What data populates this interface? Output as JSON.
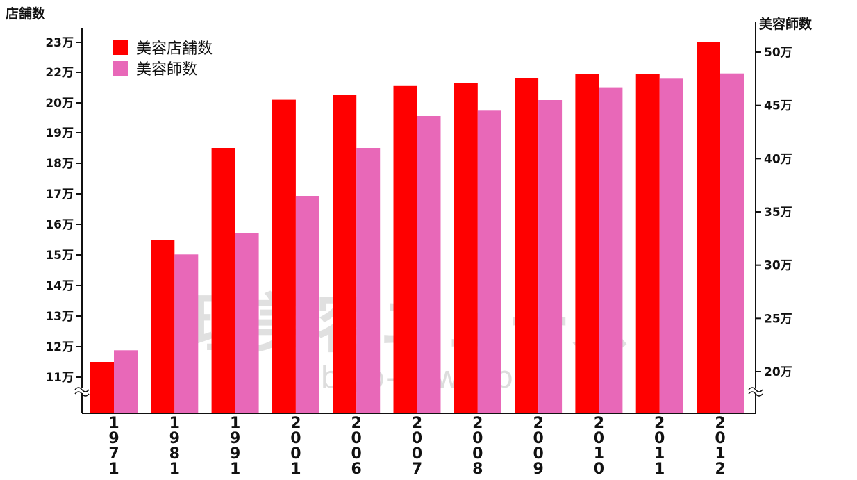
{
  "chart_data": {
    "type": "bar",
    "categories": [
      "1971",
      "1981",
      "1991",
      "2001",
      "2006",
      "2007",
      "2008",
      "2009",
      "2010",
      "2011",
      "2012"
    ],
    "series": [
      {
        "name": "美容店舗数",
        "axis": "left",
        "color": "#ff0000",
        "values": [
          115000,
          155000,
          185000,
          202000,
          205000,
          211000,
          213000,
          216000,
          219000,
          219000,
          230000
        ]
      },
      {
        "name": "美容師数",
        "axis": "right",
        "color": "#e868b8",
        "values": [
          220000,
          310000,
          330000,
          365000,
          410000,
          440000,
          445000,
          455000,
          467000,
          475000,
          480000
        ]
      }
    ],
    "y_left": {
      "label": "店舗数",
      "ticks": [
        {
          "value": 110000,
          "label": "11万"
        },
        {
          "value": 120000,
          "label": "12万"
        },
        {
          "value": 130000,
          "label": "13万"
        },
        {
          "value": 140000,
          "label": "14万"
        },
        {
          "value": 150000,
          "label": "15万"
        },
        {
          "value": 160000,
          "label": "16万"
        },
        {
          "value": 170000,
          "label": "17万"
        },
        {
          "value": 180000,
          "label": "18万"
        },
        {
          "value": 190000,
          "label": "19万"
        },
        {
          "value": 200000,
          "label": "20万"
        },
        {
          "value": 220000,
          "label": "22万"
        },
        {
          "value": 230000,
          "label": "23万"
        }
      ],
      "break_below": true
    },
    "y_right": {
      "label": "美容師数",
      "ticks": [
        {
          "value": 200000,
          "label": "20万"
        },
        {
          "value": 250000,
          "label": "25万"
        },
        {
          "value": 300000,
          "label": "30万"
        },
        {
          "value": 350000,
          "label": "35万"
        },
        {
          "value": 400000,
          "label": "40万"
        },
        {
          "value": 450000,
          "label": "45万"
        },
        {
          "value": 500000,
          "label": "50万"
        }
      ],
      "break_below": true
    },
    "legend": {
      "position": "top-left",
      "entries": [
        {
          "label": "美容店舗数",
          "color": "#ff0000"
        },
        {
          "label": "美容師数",
          "color": "#e868b8"
        }
      ]
    },
    "watermark": {
      "main": "理美容ニュース",
      "sub": "ribiyo-news.jp"
    },
    "grid": false
  }
}
